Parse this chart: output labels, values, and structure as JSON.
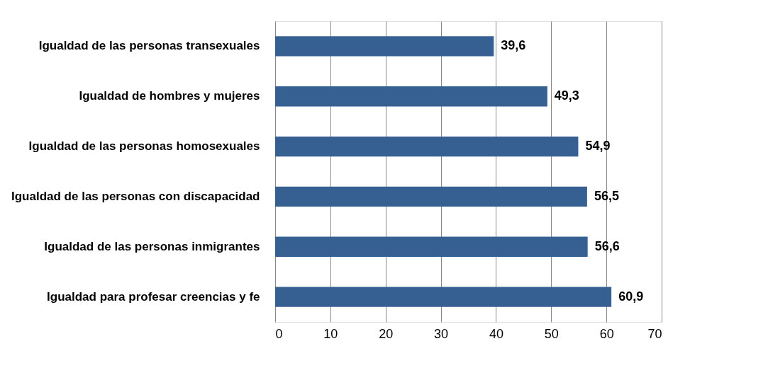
{
  "chart_data": {
    "type": "bar",
    "orientation": "horizontal",
    "categories": [
      "Igualdad de las personas transexuales",
      "Igualdad de hombres y mujeres",
      "Igualdad de las personas homosexuales",
      "Igualdad de las personas con discapacidad",
      "Igualdad de las personas inmigrantes",
      "Igualdad para profesar creencias y fe"
    ],
    "values": [
      39.6,
      49.3,
      54.9,
      56.5,
      56.6,
      60.9
    ],
    "value_labels": [
      "39,6",
      "49,3",
      "54,9",
      "56,5",
      "56,6",
      "60,9"
    ],
    "color": "#376092",
    "xlim": [
      0,
      70
    ],
    "xticks": [
      0,
      10,
      20,
      30,
      40,
      50,
      60,
      70
    ],
    "grid": "x"
  }
}
